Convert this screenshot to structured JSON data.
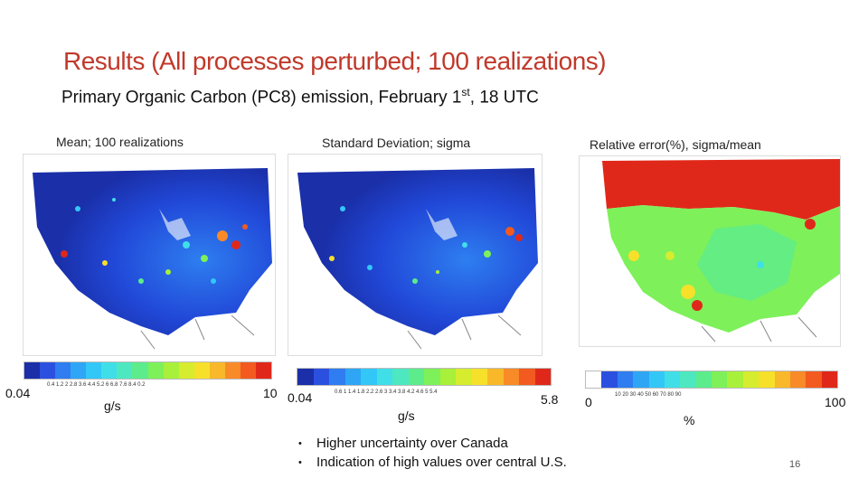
{
  "slide": {
    "title": "Results (All processes perturbed; 100 realizations)",
    "subtitle_main": "Primary Organic Carbon (PC8) emission, February 1",
    "subtitle_sup": "st",
    "subtitle_tail": ", 18 UTC",
    "page_number": "16"
  },
  "panels": [
    {
      "label": "Mean; 100 realizations",
      "colorbar_min": "0.04",
      "colorbar_max": "10",
      "colorbar_ticks": "0.4   1.2   2   2.8   3.6   4.4   5.2   6   6.8   7.6   8.4   0.2",
      "unit": "g/s"
    },
    {
      "label": "Standard Deviation; sigma",
      "colorbar_min": "0.04",
      "colorbar_max": "5.8",
      "colorbar_ticks": "0.6   1   1.4   1.8   2.2   2.6   3   3.4   3.8   4.2   4.6   5   5.4",
      "unit": "g/s"
    },
    {
      "label": "Relative error(%), sigma/mean",
      "colorbar_min": "0",
      "colorbar_max": "100",
      "colorbar_ticks": "10      20      30      40      50      60      70      80      90",
      "unit": "%"
    }
  ],
  "bullets": [
    "Higher uncertainty over Canada",
    "Indication of high values over central U.S."
  ],
  "colors": {
    "title": "#c0392b",
    "scale": [
      "#1a2fa8",
      "#2b50e0",
      "#2f7df0",
      "#2ea6f5",
      "#33c7f7",
      "#40dfe8",
      "#4de8c0",
      "#5cec8c",
      "#7ef05a",
      "#a8f03a",
      "#d6ec2e",
      "#f7e02a",
      "#f8b82a",
      "#f88a28",
      "#f25a20",
      "#e0281a"
    ]
  }
}
